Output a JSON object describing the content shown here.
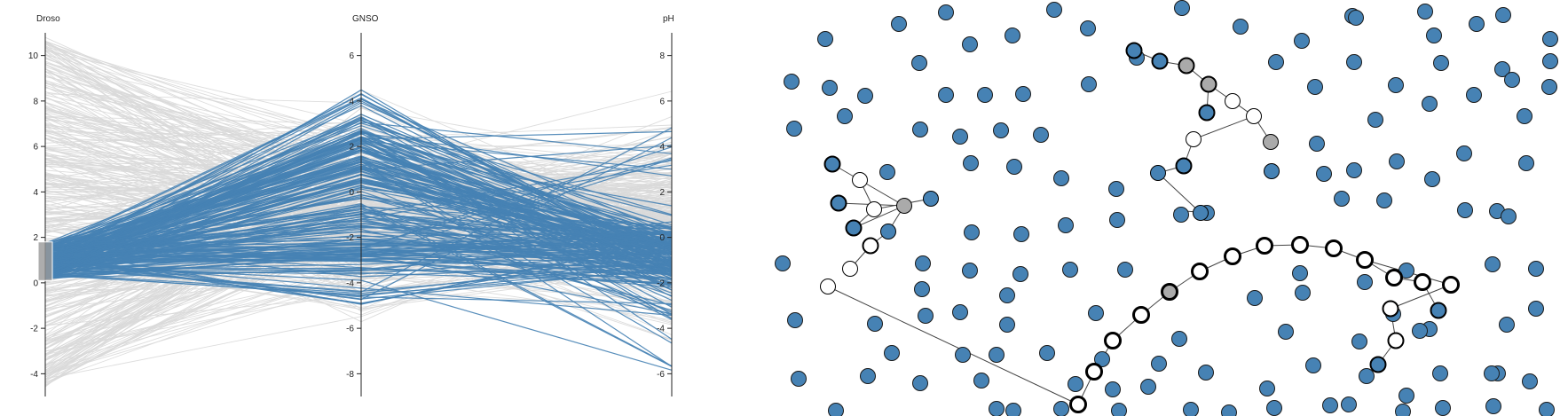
{
  "chart_data": [
    {
      "type": "parallel-coordinates",
      "axes": [
        {
          "name": "Droso",
          "ticks": [
            10,
            8,
            6,
            4,
            2,
            0,
            -2,
            -4
          ],
          "range": [
            -5,
            11
          ]
        },
        {
          "name": "GNSO",
          "ticks": [
            6,
            4,
            2,
            0,
            -2,
            -4,
            -6,
            -8
          ],
          "range": [
            -9,
            7
          ]
        },
        {
          "name": "pH",
          "ticks": [
            8,
            6,
            4,
            2,
            0,
            -2,
            -4,
            -6
          ],
          "range": [
            -7,
            9
          ]
        }
      ],
      "brush": {
        "axis": "Droso",
        "range": [
          0.1,
          1.8
        ]
      },
      "colors": {
        "highlighted": "#4682b4",
        "context": "#d9d9d9",
        "brush": "#999999"
      }
    },
    {
      "type": "node-link",
      "colors": {
        "node_fill": "#4682b4",
        "node_stroke": "#1a1a1a",
        "selected_gray": "#aaaaaa",
        "selected_white": "#ffffff",
        "edge": "#444444"
      }
    }
  ]
}
